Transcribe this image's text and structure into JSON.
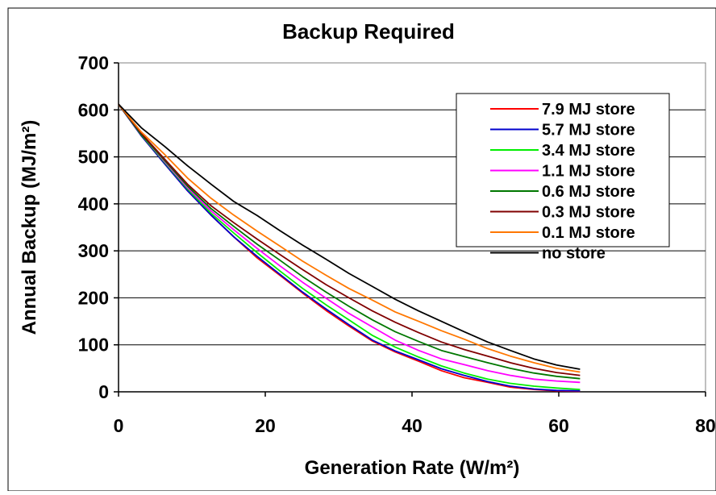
{
  "chart_data": {
    "type": "line",
    "title": "Backup Required",
    "xlabel": "Generation Rate (W/m²)",
    "ylabel": "Annual Backup (MJ/m²)",
    "xlim": [
      0,
      80
    ],
    "ylim": [
      0,
      700
    ],
    "x_ticks": [
      "0",
      "20",
      "40",
      "60",
      "80"
    ],
    "y_ticks": [
      "0",
      "100",
      "200",
      "300",
      "400",
      "500",
      "600",
      "700"
    ],
    "grid": "horizontal",
    "legend_position": "top-right",
    "x": [
      0,
      3.1,
      6.3,
      9.4,
      12.6,
      15.7,
      18.9,
      22.0,
      25.1,
      28.3,
      31.4,
      34.6,
      37.7,
      40.9,
      44.0,
      47.1,
      50.3,
      53.4,
      56.6,
      59.7,
      62.9
    ],
    "series": [
      {
        "name": "7.9 MJ store",
        "color": "#ff0000",
        "values": [
          612,
          545,
          485,
          428,
          376,
          330,
          285,
          248,
          210,
          173,
          140,
          108,
          85,
          65,
          45,
          30,
          20,
          10,
          5,
          2,
          1
        ]
      },
      {
        "name": "5.7 MJ store",
        "color": "#0000cc",
        "values": [
          612,
          545,
          485,
          428,
          376,
          330,
          288,
          250,
          212,
          176,
          143,
          110,
          87,
          68,
          49,
          35,
          22,
          12,
          6,
          3,
          2
        ]
      },
      {
        "name": "3.4 MJ store",
        "color": "#00ee00",
        "values": [
          612,
          547,
          488,
          432,
          380,
          338,
          296,
          257,
          220,
          185,
          153,
          120,
          95,
          74,
          55,
          40,
          27,
          18,
          12,
          8,
          5
        ]
      },
      {
        "name": "1.1 MJ store",
        "color": "#ff00ff",
        "values": [
          612,
          548,
          490,
          435,
          385,
          345,
          305,
          268,
          233,
          199,
          167,
          138,
          110,
          88,
          70,
          58,
          45,
          35,
          27,
          23,
          20
        ]
      },
      {
        "name": "0.6 MJ store",
        "color": "#007700",
        "values": [
          612,
          548,
          492,
          438,
          390,
          352,
          314,
          280,
          245,
          212,
          182,
          153,
          128,
          107,
          88,
          75,
          62,
          50,
          40,
          33,
          28
        ]
      },
      {
        "name": "0.3 MJ store",
        "color": "#800000",
        "values": [
          612,
          550,
          495,
          442,
          396,
          360,
          325,
          292,
          260,
          228,
          200,
          172,
          148,
          126,
          106,
          90,
          76,
          62,
          50,
          41,
          35
        ]
      },
      {
        "name": "0.1 MJ store",
        "color": "#ff7700",
        "values": [
          612,
          553,
          505,
          455,
          412,
          376,
          342,
          310,
          278,
          248,
          220,
          195,
          170,
          150,
          130,
          112,
          92,
          76,
          62,
          50,
          42
        ]
      },
      {
        "name": "no store",
        "color": "#000000",
        "values": [
          612,
          562,
          522,
          481,
          442,
          405,
          375,
          343,
          312,
          282,
          252,
          224,
          197,
          172,
          150,
          128,
          106,
          88,
          70,
          57,
          48
        ]
      }
    ]
  }
}
